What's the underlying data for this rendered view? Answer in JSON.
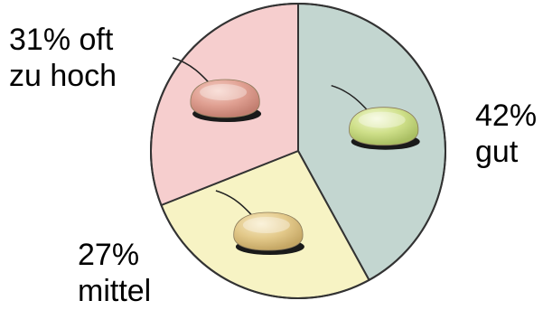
{
  "chart_data": {
    "type": "pie",
    "title": "",
    "start_angle_deg": 0,
    "direction": "clockwise",
    "slices": [
      {
        "label": "gut",
        "value": 42,
        "value_label": "42%",
        "color": "#c3d6d0",
        "icon": "soap-bar-green-icon",
        "icon_color": "#cfe08a"
      },
      {
        "label": "mittel",
        "value": 27,
        "value_label": "27%",
        "color": "#f7f3c4",
        "icon": "soap-bar-tan-icon",
        "icon_color": "#e3c98a"
      },
      {
        "label": "oft zu hoch",
        "value": 31,
        "value_label": "31% oft",
        "label_line2": "zu hoch",
        "color": "#f6cece",
        "icon": "soap-bar-red-icon",
        "icon_color": "#e0a092"
      }
    ],
    "legend": "none"
  }
}
